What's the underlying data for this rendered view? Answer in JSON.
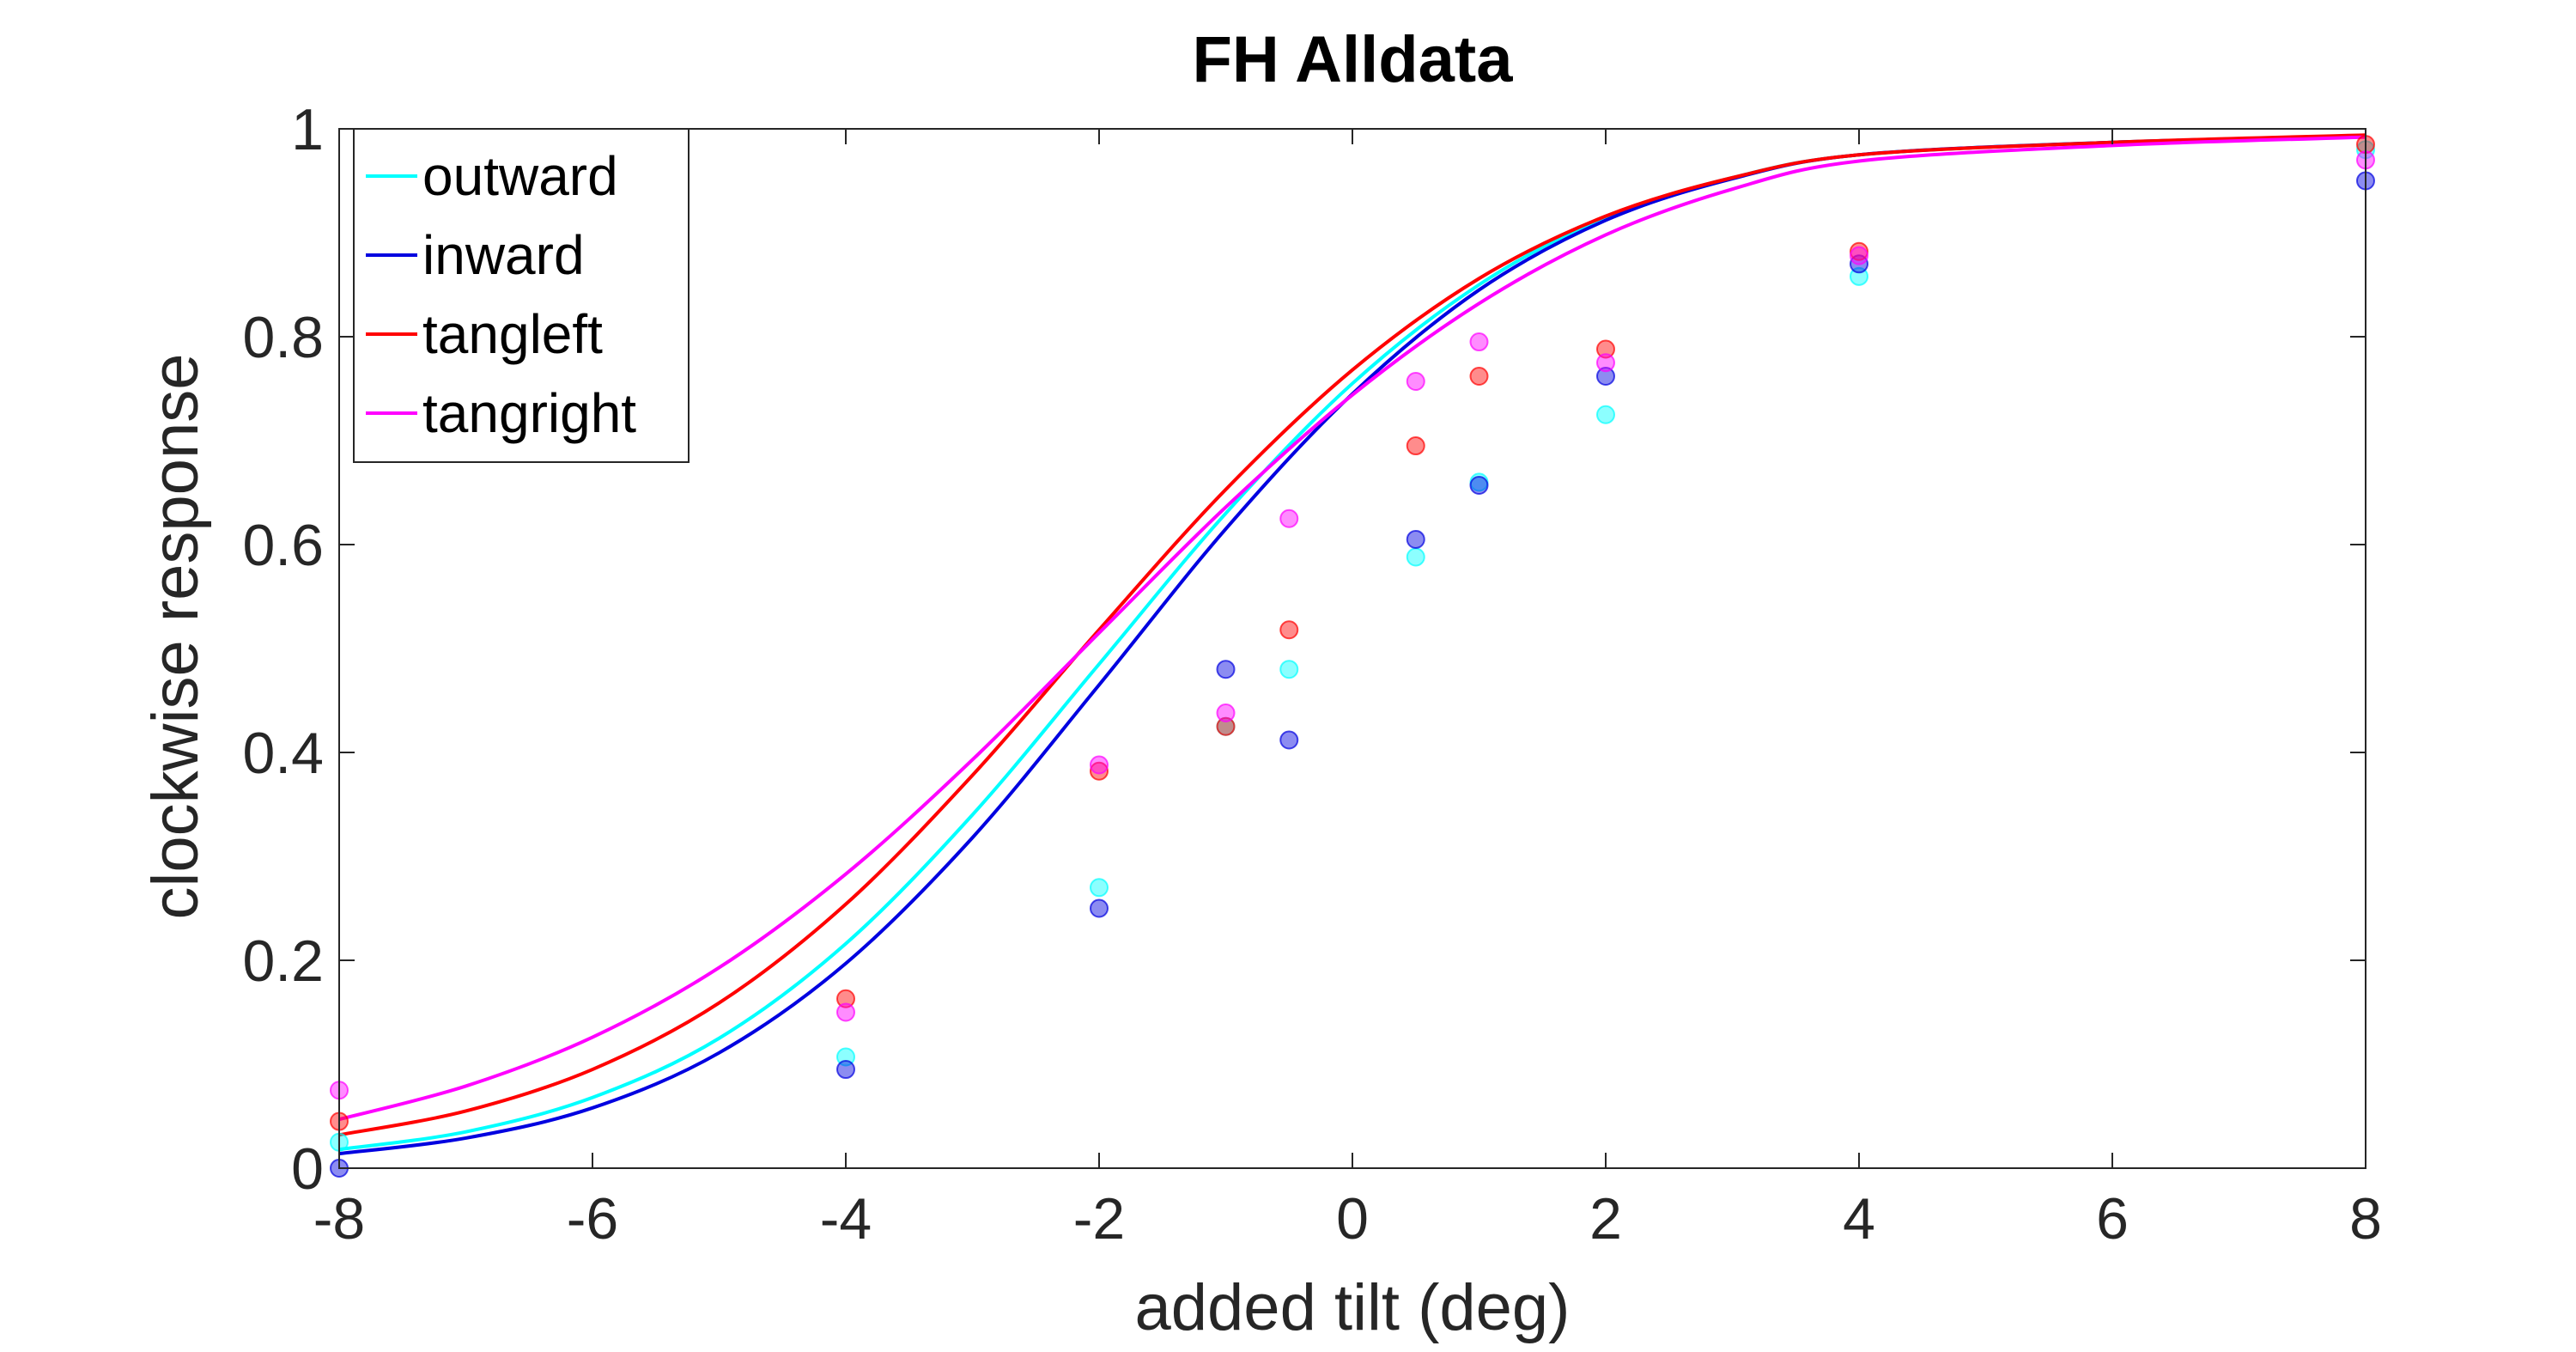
{
  "chart_data": {
    "type": "scatter",
    "title": "FH Alldata",
    "xlabel": "added tilt (deg)",
    "ylabel": "clockwise response",
    "xlim": [
      -8,
      8
    ],
    "ylim": [
      0,
      1
    ],
    "xticks": [
      -8,
      -6,
      -4,
      -2,
      0,
      2,
      4,
      6,
      8
    ],
    "yticks": [
      0,
      0.2,
      0.4,
      0.6,
      0.8,
      1
    ],
    "xtick_labels": [
      "-8",
      "-6",
      "-4",
      "-2",
      "0",
      "2",
      "4",
      "6",
      "8"
    ],
    "ytick_labels": [
      "0",
      "0.2",
      "0.4",
      "0.6",
      "0.8",
      "1"
    ],
    "grid": false,
    "legend_position": "top-left",
    "x": [
      -8,
      -4,
      -2,
      -1,
      -0.5,
      0.5,
      1,
      2,
      4,
      8
    ],
    "series": [
      {
        "name": "outward",
        "color": "#00FFFF",
        "points": [
          0.025,
          0.107,
          0.27,
          0.425,
          0.48,
          0.588,
          0.66,
          0.725,
          0.858,
          0.98
        ],
        "fit_curve": [
          0.018,
          0.035,
          0.068,
          0.125,
          0.216,
          0.34,
          0.485,
          0.63,
          0.755,
          0.85,
          0.915,
          0.953,
          0.975,
          0.987,
          0.993
        ]
      },
      {
        "name": "inward",
        "color": "#0000E0",
        "points": [
          0.0,
          0.095,
          0.25,
          0.48,
          0.412,
          0.605,
          0.657,
          0.762,
          0.87,
          0.95
        ],
        "fit_curve": [
          0.014,
          0.029,
          0.058,
          0.111,
          0.197,
          0.318,
          0.465,
          0.615,
          0.745,
          0.845,
          0.912,
          0.952,
          0.975,
          0.987,
          0.993
        ]
      },
      {
        "name": "tangleft",
        "color": "#FF0000",
        "points": [
          0.045,
          0.163,
          0.382,
          0.425,
          0.518,
          0.695,
          0.762,
          0.788,
          0.882,
          0.985
        ],
        "fit_curve": [
          0.032,
          0.055,
          0.095,
          0.159,
          0.254,
          0.378,
          0.518,
          0.653,
          0.768,
          0.856,
          0.916,
          0.953,
          0.975,
          0.987,
          0.994
        ]
      },
      {
        "name": "tangright",
        "color": "#FF00FF",
        "points": [
          0.075,
          0.15,
          0.388,
          0.438,
          0.625,
          0.757,
          0.795,
          0.775,
          0.878,
          0.97
        ],
        "fit_curve": [
          0.047,
          0.079,
          0.126,
          0.193,
          0.283,
          0.393,
          0.515,
          0.636,
          0.744,
          0.832,
          0.898,
          0.942,
          0.969,
          0.984,
          0.992
        ]
      }
    ],
    "fit_x": [
      -8,
      -7,
      -6,
      -5,
      -4,
      -3,
      -2,
      -1,
      0,
      1,
      2,
      3,
      4,
      6,
      8
    ]
  }
}
